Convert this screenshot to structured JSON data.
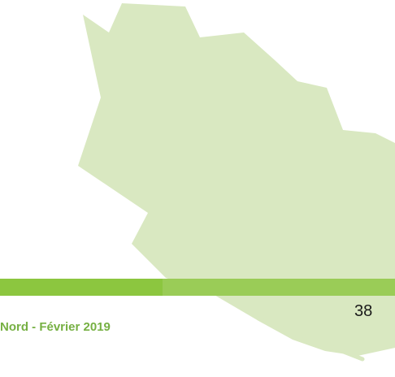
{
  "footer": {
    "text": "Nord - Février 2019",
    "page_number": "38"
  }
}
